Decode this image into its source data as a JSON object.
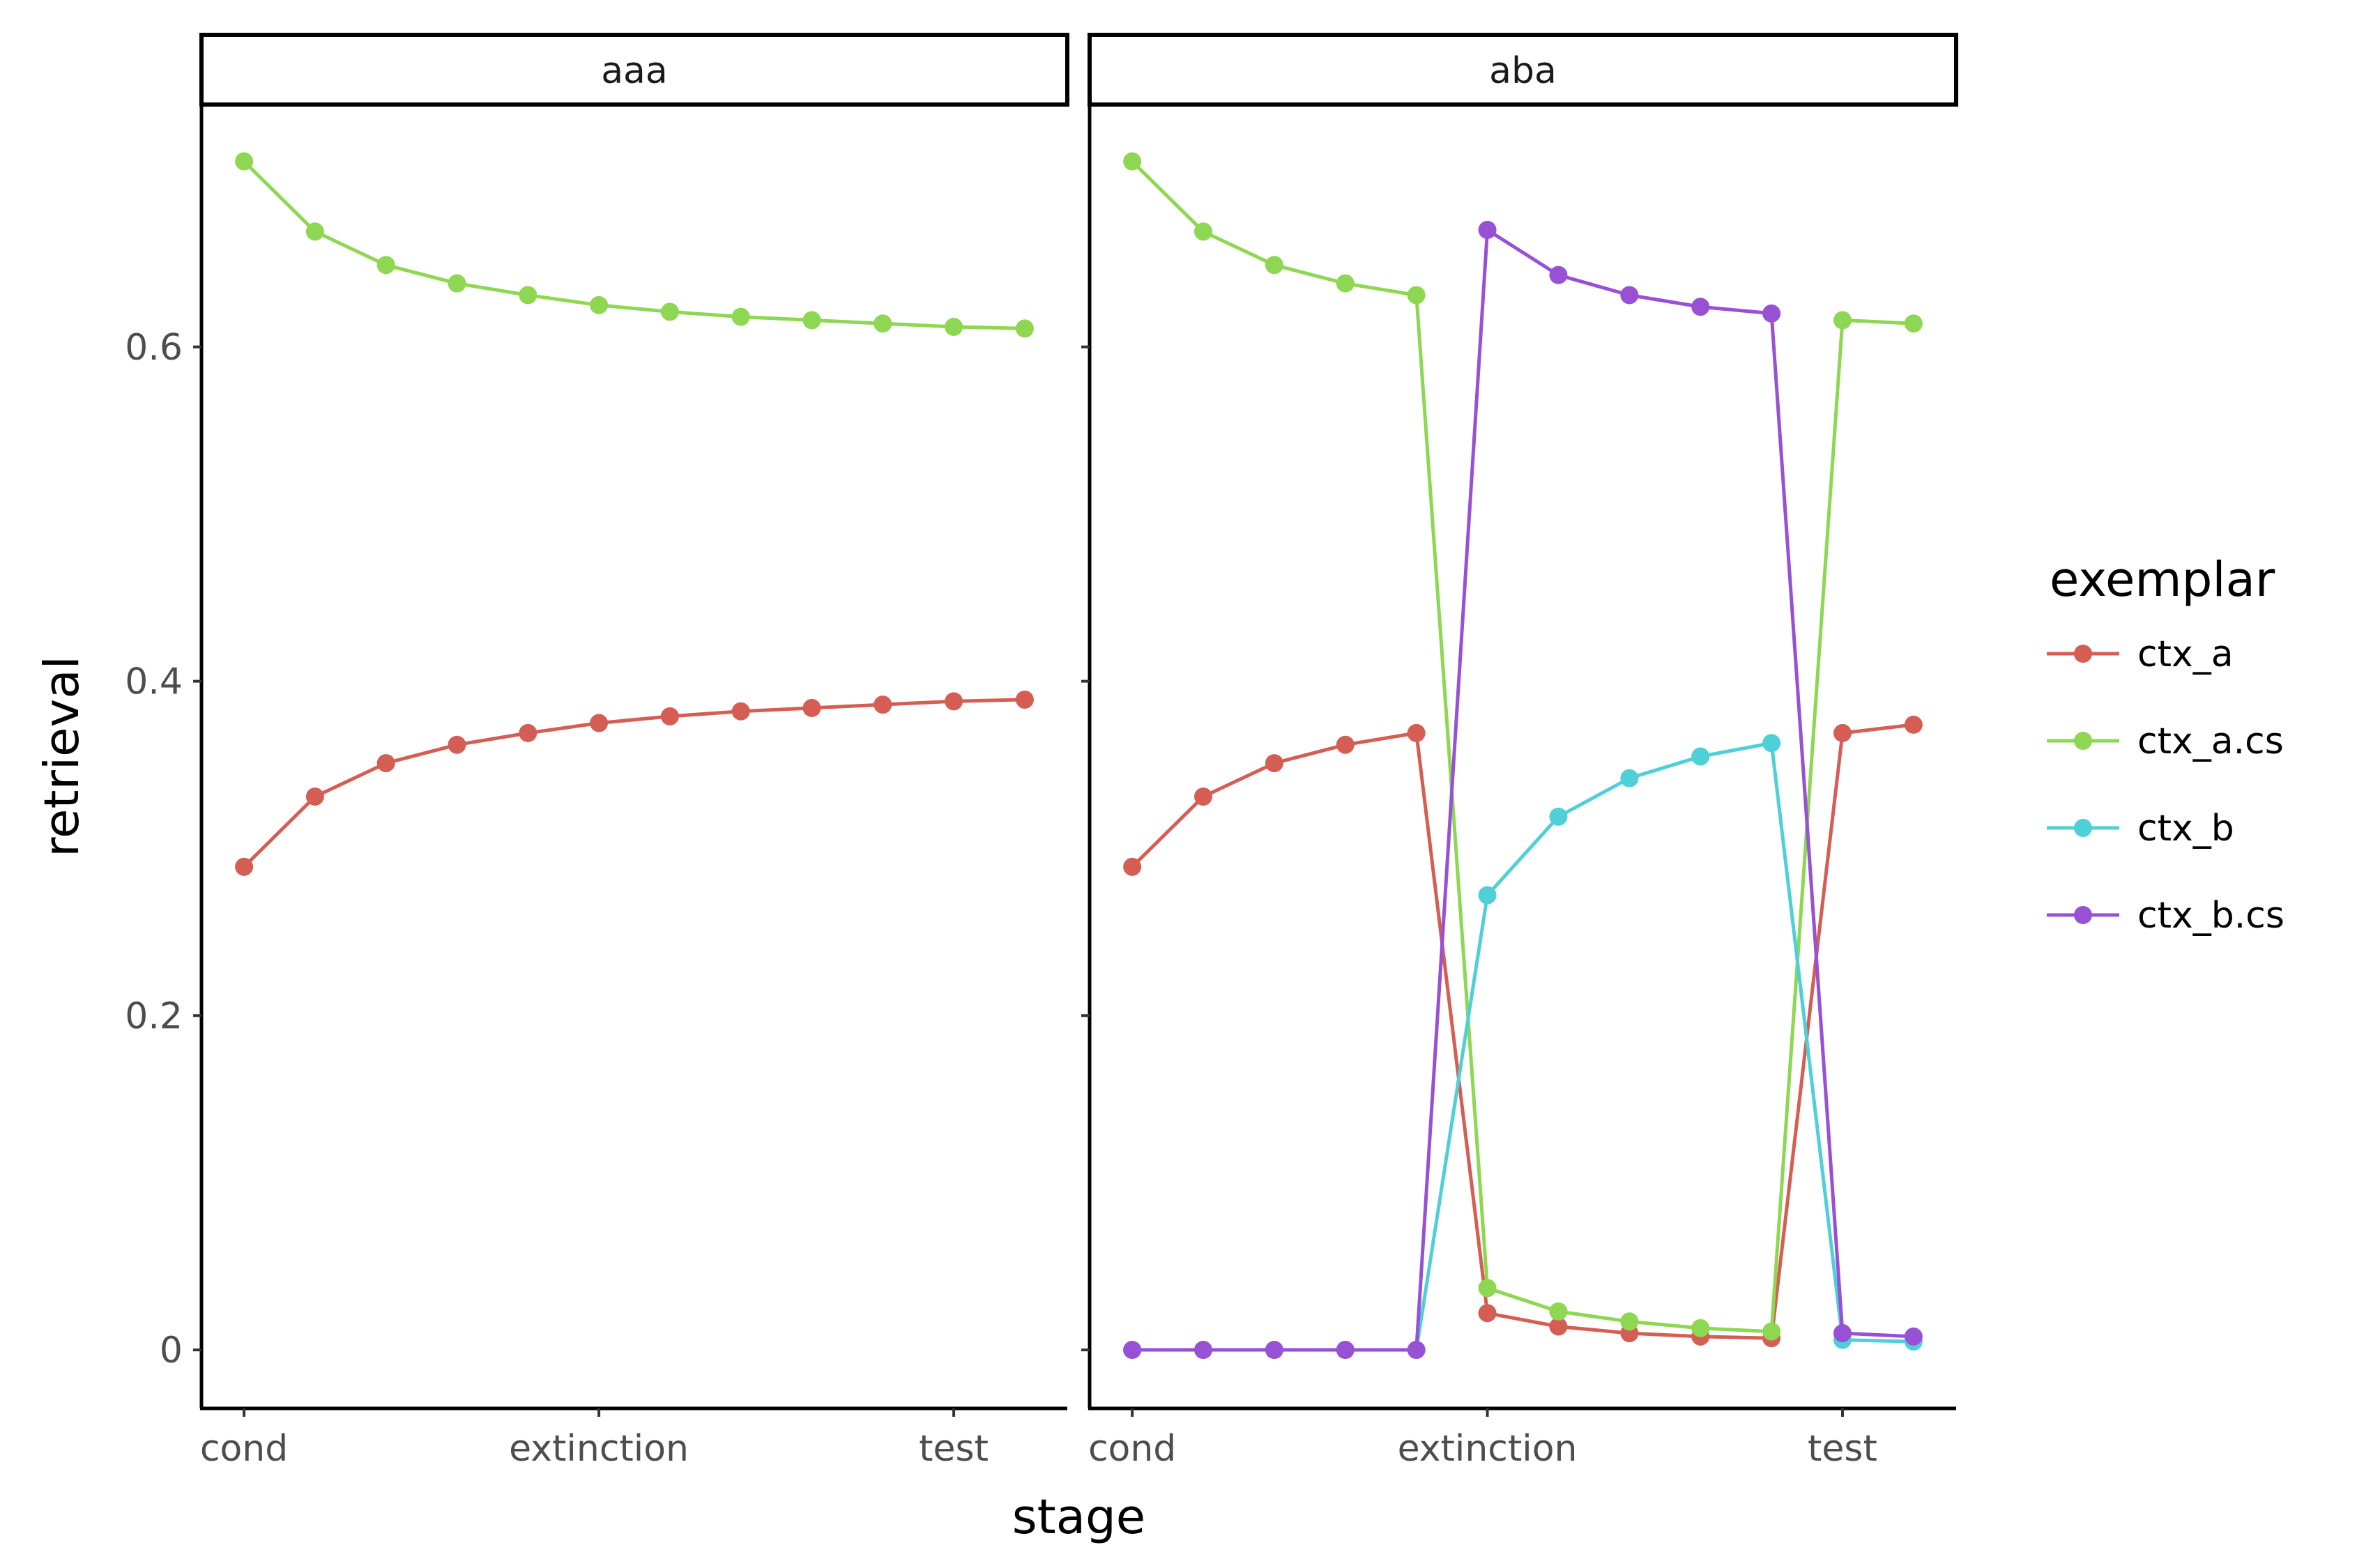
{
  "chart_data": {
    "type": "line",
    "xlabel": "stage",
    "ylabel": "retrieval",
    "x_tick_labels": [
      "cond",
      "extinction",
      "test"
    ],
    "y_ticks": [
      0,
      0.2,
      0.4,
      0.6
    ],
    "y_tick_labels": [
      "0",
      "0.2",
      "0.4",
      "0.6"
    ],
    "ylim": [
      -0.035,
      0.745
    ],
    "xlim": [
      -0.6,
      11.6
    ],
    "legend": {
      "title": "exemplar",
      "position": "right",
      "entries": [
        "ctx_a",
        "ctx_a.cs",
        "ctx_b",
        "ctx_b.cs"
      ]
    },
    "colors": {
      "ctx_a": "#d55e54",
      "ctx_a.cs": "#8ed752",
      "ctx_b": "#4fcfd7",
      "ctx_b.cs": "#9850d5"
    },
    "panels": [
      {
        "label": "aaa",
        "x_tick_positions": [
          0,
          5,
          10
        ],
        "series": [
          {
            "name": "ctx_a",
            "x": [
              0,
              1,
              2,
              3,
              4,
              5,
              6,
              7,
              8,
              9,
              10,
              11
            ],
            "y": [
              0.289,
              0.331,
              0.351,
              0.362,
              0.369,
              0.375,
              0.379,
              0.382,
              0.384,
              0.386,
              0.388,
              0.389
            ]
          },
          {
            "name": "ctx_a.cs",
            "x": [
              0,
              1,
              2,
              3,
              4,
              5,
              6,
              7,
              8,
              9,
              10,
              11
            ],
            "y": [
              0.711,
              0.669,
              0.649,
              0.638,
              0.631,
              0.625,
              0.621,
              0.618,
              0.616,
              0.614,
              0.612,
              0.611
            ]
          }
        ]
      },
      {
        "label": "aba",
        "x_tick_positions": [
          0,
          5,
          10
        ],
        "series": [
          {
            "name": "ctx_a",
            "x": [
              0,
              1,
              2,
              3,
              4,
              5,
              6,
              7,
              8,
              9,
              10,
              11
            ],
            "y": [
              0.289,
              0.331,
              0.351,
              0.362,
              0.369,
              0.022,
              0.014,
              0.01,
              0.008,
              0.007,
              0.369,
              0.374
            ]
          },
          {
            "name": "ctx_a.cs",
            "x": [
              0,
              1,
              2,
              3,
              4,
              5,
              6,
              7,
              8,
              9,
              10,
              11
            ],
            "y": [
              0.711,
              0.669,
              0.649,
              0.638,
              0.631,
              0.037,
              0.023,
              0.017,
              0.013,
              0.011,
              0.616,
              0.614
            ]
          },
          {
            "name": "ctx_b",
            "x": [
              0,
              1,
              2,
              3,
              4,
              5,
              6,
              7,
              8,
              9,
              10,
              11
            ],
            "y": [
              0.0,
              0.0,
              0.0,
              0.0,
              0.0,
              0.272,
              0.319,
              0.342,
              0.355,
              0.363,
              0.006,
              0.005
            ]
          },
          {
            "name": "ctx_b.cs",
            "x": [
              0,
              1,
              2,
              3,
              4,
              5,
              6,
              7,
              8,
              9,
              10,
              11
            ],
            "y": [
              0.0,
              0.0,
              0.0,
              0.0,
              0.0,
              0.67,
              0.643,
              0.631,
              0.624,
              0.62,
              0.01,
              0.008
            ]
          }
        ]
      }
    ]
  }
}
